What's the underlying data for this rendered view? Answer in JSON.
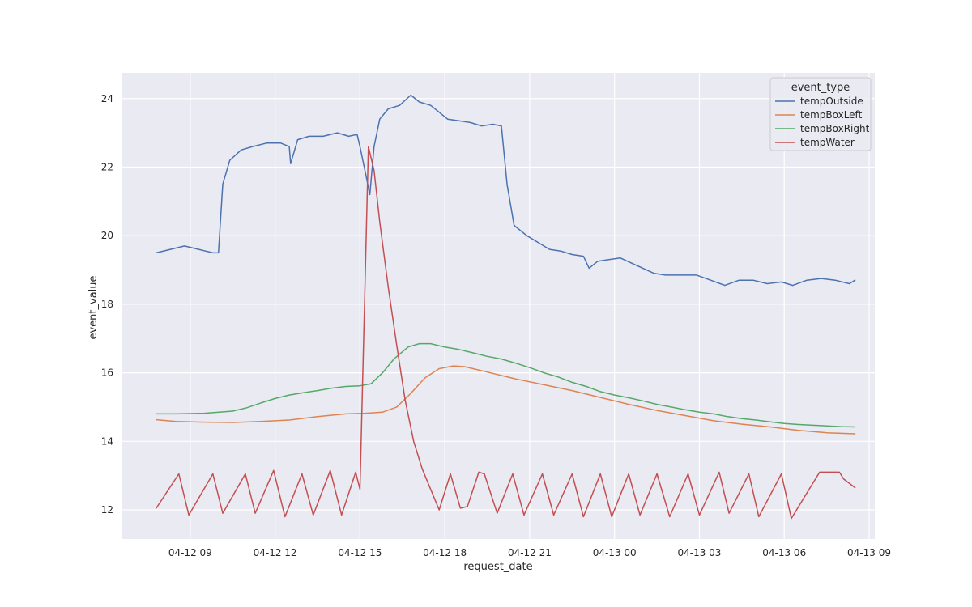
{
  "chart_data": {
    "type": "line",
    "title": "",
    "xlabel": "request_date",
    "ylabel": "event_value",
    "x_unit": "hours since 04-12 00:00",
    "xlim": [
      6.6,
      33.2
    ],
    "ylim": [
      11.15,
      24.75
    ],
    "x_ticks": [
      {
        "value": 9,
        "label": "04-12 09"
      },
      {
        "value": 12,
        "label": "04-12 12"
      },
      {
        "value": 15,
        "label": "04-12 15"
      },
      {
        "value": 18,
        "label": "04-12 18"
      },
      {
        "value": 21,
        "label": "04-12 21"
      },
      {
        "value": 24,
        "label": "04-13 00"
      },
      {
        "value": 27,
        "label": "04-13 03"
      },
      {
        "value": 30,
        "label": "04-13 06"
      },
      {
        "value": 33,
        "label": "04-13 09"
      }
    ],
    "y_ticks": [
      {
        "value": 12,
        "label": "12"
      },
      {
        "value": 14,
        "label": "14"
      },
      {
        "value": 16,
        "label": "16"
      },
      {
        "value": 18,
        "label": "18"
      },
      {
        "value": 20,
        "label": "20"
      },
      {
        "value": 22,
        "label": "22"
      },
      {
        "value": 24,
        "label": "24"
      }
    ],
    "grid": true,
    "legend": {
      "title": "event_type",
      "position": "top-right"
    },
    "series": [
      {
        "name": "tempOutside",
        "color": "#4c72b0",
        "points": [
          [
            7.8,
            19.5
          ],
          [
            8.3,
            19.6
          ],
          [
            8.8,
            19.7
          ],
          [
            9.3,
            19.6
          ],
          [
            9.8,
            19.5
          ],
          [
            10.0,
            19.5
          ],
          [
            10.15,
            21.5
          ],
          [
            10.4,
            22.2
          ],
          [
            10.8,
            22.5
          ],
          [
            11.2,
            22.6
          ],
          [
            11.7,
            22.7
          ],
          [
            12.2,
            22.7
          ],
          [
            12.5,
            22.6
          ],
          [
            12.55,
            22.1
          ],
          [
            12.8,
            22.8
          ],
          [
            13.2,
            22.9
          ],
          [
            13.7,
            22.9
          ],
          [
            14.2,
            23.0
          ],
          [
            14.6,
            22.9
          ],
          [
            14.9,
            22.95
          ],
          [
            15.0,
            22.6
          ],
          [
            15.2,
            21.8
          ],
          [
            15.35,
            21.2
          ],
          [
            15.5,
            22.6
          ],
          [
            15.7,
            23.4
          ],
          [
            16.0,
            23.7
          ],
          [
            16.4,
            23.8
          ],
          [
            16.8,
            24.1
          ],
          [
            17.1,
            23.9
          ],
          [
            17.5,
            23.8
          ],
          [
            17.8,
            23.6
          ],
          [
            18.1,
            23.4
          ],
          [
            18.5,
            23.35
          ],
          [
            18.9,
            23.3
          ],
          [
            19.3,
            23.2
          ],
          [
            19.7,
            23.25
          ],
          [
            20.0,
            23.2
          ],
          [
            20.2,
            21.5
          ],
          [
            20.45,
            20.3
          ],
          [
            20.9,
            20.0
          ],
          [
            21.3,
            19.8
          ],
          [
            21.7,
            19.6
          ],
          [
            22.1,
            19.55
          ],
          [
            22.5,
            19.45
          ],
          [
            22.9,
            19.4
          ],
          [
            23.1,
            19.05
          ],
          [
            23.4,
            19.25
          ],
          [
            23.8,
            19.3
          ],
          [
            24.2,
            19.35
          ],
          [
            24.6,
            19.2
          ],
          [
            25.0,
            19.05
          ],
          [
            25.4,
            18.9
          ],
          [
            25.8,
            18.85
          ],
          [
            26.3,
            18.85
          ],
          [
            26.9,
            18.85
          ],
          [
            27.4,
            18.7
          ],
          [
            27.9,
            18.55
          ],
          [
            28.4,
            18.7
          ],
          [
            28.9,
            18.7
          ],
          [
            29.4,
            18.6
          ],
          [
            29.9,
            18.65
          ],
          [
            30.3,
            18.55
          ],
          [
            30.8,
            18.7
          ],
          [
            31.3,
            18.75
          ],
          [
            31.8,
            18.7
          ],
          [
            32.3,
            18.6
          ],
          [
            32.5,
            18.7
          ]
        ]
      },
      {
        "name": "tempBoxLeft",
        "color": "#dd8452",
        "points": [
          [
            7.8,
            14.63
          ],
          [
            8.5,
            14.58
          ],
          [
            9.5,
            14.56
          ],
          [
            10.5,
            14.55
          ],
          [
            11.5,
            14.58
          ],
          [
            12.5,
            14.62
          ],
          [
            13.5,
            14.72
          ],
          [
            14.5,
            14.8
          ],
          [
            15.2,
            14.82
          ],
          [
            15.8,
            14.85
          ],
          [
            16.3,
            15.0
          ],
          [
            16.8,
            15.4
          ],
          [
            17.3,
            15.85
          ],
          [
            17.8,
            16.12
          ],
          [
            18.3,
            16.2
          ],
          [
            18.7,
            16.18
          ],
          [
            19.5,
            16.02
          ],
          [
            20.5,
            15.82
          ],
          [
            21.5,
            15.65
          ],
          [
            22.5,
            15.48
          ],
          [
            23.5,
            15.28
          ],
          [
            24.5,
            15.08
          ],
          [
            25.5,
            14.9
          ],
          [
            26.5,
            14.75
          ],
          [
            27.5,
            14.6
          ],
          [
            28.5,
            14.5
          ],
          [
            29.5,
            14.42
          ],
          [
            30.5,
            14.32
          ],
          [
            31.5,
            14.25
          ],
          [
            32.5,
            14.22
          ]
        ]
      },
      {
        "name": "tempBoxRight",
        "color": "#55a868",
        "points": [
          [
            7.8,
            14.8
          ],
          [
            8.5,
            14.8
          ],
          [
            9.5,
            14.82
          ],
          [
            10.5,
            14.88
          ],
          [
            11.0,
            14.98
          ],
          [
            11.5,
            15.12
          ],
          [
            12.0,
            15.25
          ],
          [
            12.5,
            15.35
          ],
          [
            13.0,
            15.42
          ],
          [
            13.5,
            15.48
          ],
          [
            14.0,
            15.55
          ],
          [
            14.5,
            15.6
          ],
          [
            15.0,
            15.62
          ],
          [
            15.4,
            15.68
          ],
          [
            15.8,
            16.0
          ],
          [
            16.2,
            16.4
          ],
          [
            16.7,
            16.75
          ],
          [
            17.1,
            16.85
          ],
          [
            17.5,
            16.85
          ],
          [
            18.0,
            16.75
          ],
          [
            18.5,
            16.68
          ],
          [
            19.0,
            16.58
          ],
          [
            19.5,
            16.48
          ],
          [
            20.0,
            16.4
          ],
          [
            20.5,
            16.28
          ],
          [
            21.0,
            16.15
          ],
          [
            21.5,
            16.0
          ],
          [
            22.0,
            15.88
          ],
          [
            22.5,
            15.72
          ],
          [
            23.0,
            15.6
          ],
          [
            23.5,
            15.45
          ],
          [
            24.0,
            15.35
          ],
          [
            24.5,
            15.27
          ],
          [
            25.0,
            15.18
          ],
          [
            25.5,
            15.08
          ],
          [
            26.0,
            15.0
          ],
          [
            26.5,
            14.92
          ],
          [
            27.0,
            14.85
          ],
          [
            27.5,
            14.8
          ],
          [
            28.0,
            14.72
          ],
          [
            28.5,
            14.66
          ],
          [
            29.0,
            14.62
          ],
          [
            29.5,
            14.57
          ],
          [
            30.0,
            14.52
          ],
          [
            30.5,
            14.49
          ],
          [
            31.0,
            14.47
          ],
          [
            31.5,
            14.45
          ],
          [
            32.0,
            14.43
          ],
          [
            32.5,
            14.42
          ]
        ]
      },
      {
        "name": "tempWater",
        "color": "#c44e52",
        "points": [
          [
            7.8,
            12.05
          ],
          [
            8.6,
            13.05
          ],
          [
            8.95,
            11.85
          ],
          [
            9.8,
            13.05
          ],
          [
            10.15,
            11.9
          ],
          [
            10.95,
            13.05
          ],
          [
            11.3,
            11.9
          ],
          [
            11.95,
            13.15
          ],
          [
            12.35,
            11.8
          ],
          [
            12.95,
            13.05
          ],
          [
            13.35,
            11.85
          ],
          [
            13.95,
            13.15
          ],
          [
            14.35,
            11.85
          ],
          [
            14.85,
            13.1
          ],
          [
            15.0,
            12.6
          ],
          [
            15.3,
            22.6
          ],
          [
            15.5,
            21.9
          ],
          [
            15.7,
            20.4
          ],
          [
            16.0,
            18.5
          ],
          [
            16.3,
            16.8
          ],
          [
            16.6,
            15.2
          ],
          [
            16.9,
            14.0
          ],
          [
            17.2,
            13.2
          ],
          [
            17.5,
            12.6
          ],
          [
            17.8,
            12.0
          ],
          [
            18.2,
            13.05
          ],
          [
            18.55,
            12.05
          ],
          [
            18.8,
            12.1
          ],
          [
            19.2,
            13.1
          ],
          [
            19.4,
            13.05
          ],
          [
            19.85,
            11.9
          ],
          [
            20.4,
            13.05
          ],
          [
            20.8,
            11.85
          ],
          [
            21.45,
            13.05
          ],
          [
            21.85,
            11.85
          ],
          [
            22.5,
            13.05
          ],
          [
            22.9,
            11.8
          ],
          [
            23.5,
            13.05
          ],
          [
            23.9,
            11.8
          ],
          [
            24.5,
            13.05
          ],
          [
            24.9,
            11.85
          ],
          [
            25.5,
            13.05
          ],
          [
            25.95,
            11.8
          ],
          [
            26.6,
            13.05
          ],
          [
            27.0,
            11.85
          ],
          [
            27.7,
            13.1
          ],
          [
            28.05,
            11.9
          ],
          [
            28.75,
            13.05
          ],
          [
            29.1,
            11.8
          ],
          [
            29.9,
            13.05
          ],
          [
            30.25,
            11.75
          ],
          [
            31.25,
            13.1
          ],
          [
            31.95,
            13.1
          ],
          [
            32.1,
            12.9
          ],
          [
            32.5,
            12.65
          ]
        ]
      }
    ]
  }
}
